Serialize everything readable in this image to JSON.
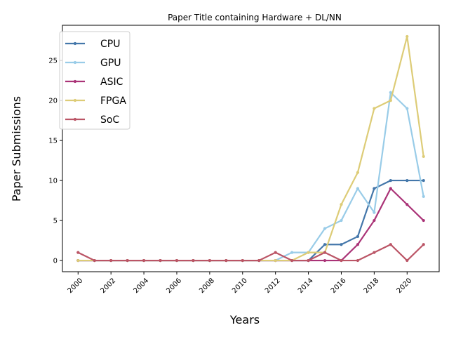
{
  "chart_data": {
    "type": "line",
    "title": "Paper Title containing Hardware + DL/NN",
    "xlabel": "Years",
    "ylabel": "Paper Submissions",
    "x": [
      2000,
      2001,
      2002,
      2003,
      2004,
      2005,
      2006,
      2007,
      2008,
      2009,
      2010,
      2011,
      2012,
      2013,
      2014,
      2015,
      2016,
      2017,
      2018,
      2019,
      2020,
      2021
    ],
    "xticks": [
      2000,
      2002,
      2004,
      2006,
      2008,
      2010,
      2012,
      2014,
      2016,
      2018,
      2020
    ],
    "xlim": [
      1999.05,
      2021.95
    ],
    "ylim": [
      -1.4,
      29.4
    ],
    "yticks": [
      0,
      5,
      10,
      15,
      20,
      25
    ],
    "grid": false,
    "legend_position": "upper-left",
    "series": [
      {
        "name": "CPU",
        "color": "#4477aa",
        "values": [
          0,
          0,
          0,
          0,
          0,
          0,
          0,
          0,
          0,
          0,
          0,
          0,
          0,
          0,
          0,
          2,
          2,
          3,
          9,
          10,
          10,
          10
        ]
      },
      {
        "name": "GPU",
        "color": "#99cce8",
        "values": [
          0,
          0,
          0,
          0,
          0,
          0,
          0,
          0,
          0,
          0,
          0,
          0,
          0,
          1,
          1,
          4,
          5,
          9,
          6,
          21,
          19,
          8
        ]
      },
      {
        "name": "ASIC",
        "color": "#aa3377",
        "values": [
          0,
          0,
          0,
          0,
          0,
          0,
          0,
          0,
          0,
          0,
          0,
          0,
          0,
          0,
          0,
          0,
          0,
          2,
          5,
          9,
          7,
          5
        ]
      },
      {
        "name": "FPGA",
        "color": "#ddcc77",
        "values": [
          0,
          0,
          0,
          0,
          0,
          0,
          0,
          0,
          0,
          0,
          0,
          0,
          0,
          0,
          1,
          1,
          7,
          11,
          19,
          20,
          28,
          13
        ]
      },
      {
        "name": "SoC",
        "color": "#bb5566",
        "values": [
          1,
          0,
          0,
          0,
          0,
          0,
          0,
          0,
          0,
          0,
          0,
          0,
          1,
          0,
          0,
          1,
          0,
          0,
          1,
          2,
          0,
          2
        ]
      }
    ]
  }
}
